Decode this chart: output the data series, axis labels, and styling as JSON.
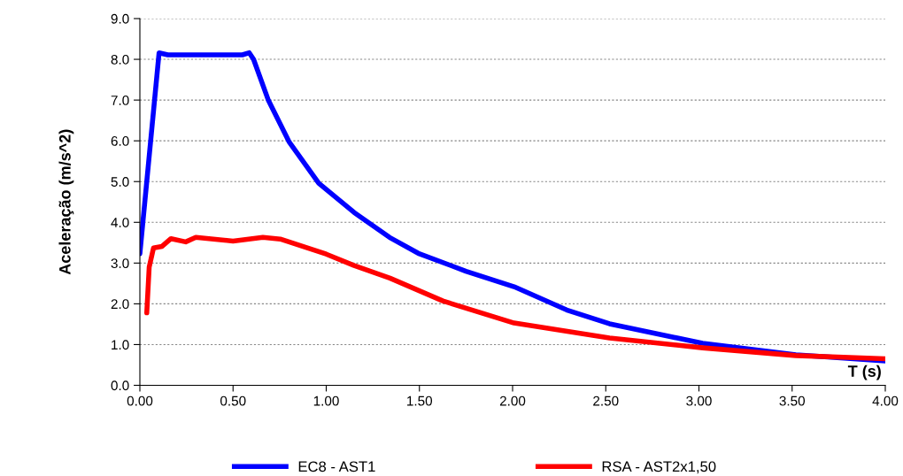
{
  "chart_data": {
    "type": "line",
    "xlabel": "T (s)",
    "ylabel": "Aceleração (m/s^2)",
    "xlim": [
      0,
      4
    ],
    "ylim": [
      0,
      9
    ],
    "xticks": [
      {
        "value": 0,
        "label": "0.00"
      },
      {
        "value": 0.5,
        "label": "0.50"
      },
      {
        "value": 1,
        "label": "1.00"
      },
      {
        "value": 1.5,
        "label": "1.50"
      },
      {
        "value": 2,
        "label": "2.00"
      },
      {
        "value": 2.5,
        "label": "2.50"
      },
      {
        "value": 3,
        "label": "3.00"
      },
      {
        "value": 3.5,
        "label": "3.50"
      },
      {
        "value": 4,
        "label": "4.00"
      }
    ],
    "yticks": [
      {
        "value": 0,
        "label": "0.0"
      },
      {
        "value": 1,
        "label": "1.0"
      },
      {
        "value": 2,
        "label": "2.0"
      },
      {
        "value": 3,
        "label": "3.0"
      },
      {
        "value": 4,
        "label": "4.0"
      },
      {
        "value": 5,
        "label": "5.0"
      },
      {
        "value": 6,
        "label": "6.0"
      },
      {
        "value": 7,
        "label": "7.0"
      },
      {
        "value": 8,
        "label": "8.0"
      },
      {
        "value": 9,
        "label": "9.0"
      }
    ],
    "grid": "y",
    "legend": "bottom",
    "marker": "none",
    "line_style": "solid",
    "series": [
      {
        "name": "EC8 - AST1",
        "color": "#0000ff",
        "x": [
          0,
          0.103,
          0.15,
          0.3,
          0.55,
          0.587,
          0.61,
          0.69,
          0.8,
          0.96,
          1.15,
          1.34,
          1.494,
          1.75,
          2.008,
          2.29,
          2.52,
          3.02,
          3.52,
          4.0
        ],
        "values": [
          3.23,
          8.16,
          8.11,
          8.11,
          8.11,
          8.16,
          8.0,
          6.99,
          5.98,
          4.96,
          4.24,
          3.63,
          3.24,
          2.8,
          2.42,
          1.85,
          1.51,
          1.03,
          0.75,
          0.6
        ]
      },
      {
        "name": "RSA - AST2x1,50",
        "color": "#ff0000",
        "x": [
          0.037,
          0.05,
          0.073,
          0.119,
          0.167,
          0.246,
          0.3,
          0.5,
          0.66,
          0.753,
          1.0,
          1.15,
          1.342,
          1.626,
          2.008,
          2.52,
          3.02,
          3.52,
          4.0
        ],
        "values": [
          1.78,
          2.9,
          3.37,
          3.41,
          3.6,
          3.52,
          3.63,
          3.54,
          3.63,
          3.59,
          3.22,
          2.94,
          2.63,
          2.07,
          1.53,
          1.16,
          0.92,
          0.73,
          0.65
        ]
      }
    ]
  }
}
